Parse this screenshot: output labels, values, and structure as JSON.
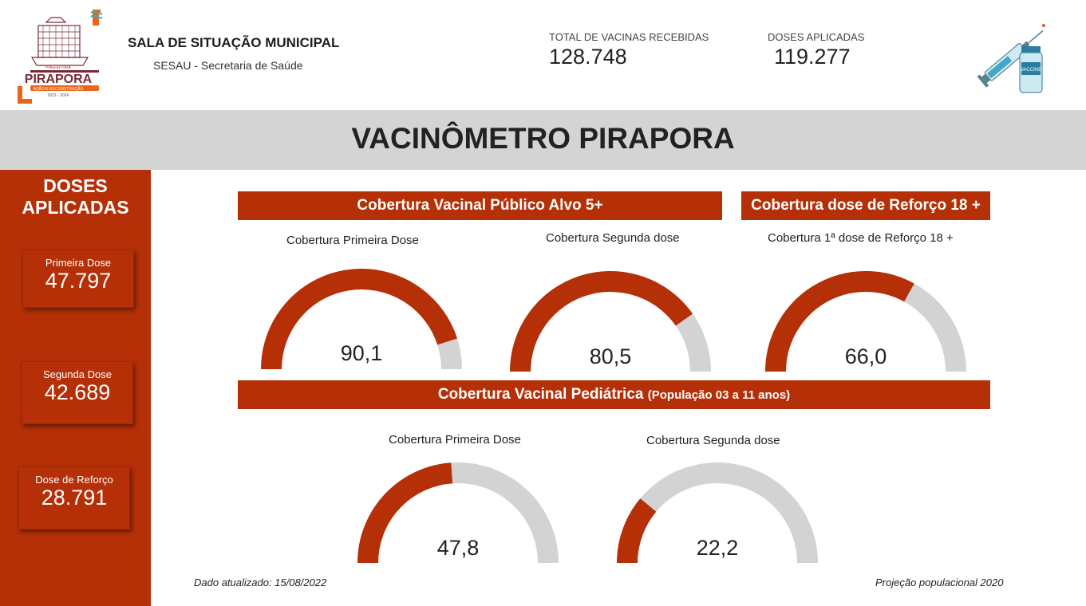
{
  "header": {
    "logo_text": "PIRAPORA",
    "title": "SALA DE SITUAÇÃO MUNICIPAL",
    "subtitle": "SESAU - Secretaria de Saúde",
    "kpis": [
      {
        "label": "TOTAL DE VACINAS RECEBIDAS",
        "value": "128.748"
      },
      {
        "label": "DOSES APLICADAS",
        "value": "119.277"
      }
    ]
  },
  "banner": {
    "title": "VACINÔMETRO PIRAPORA"
  },
  "sidebar": {
    "title": "DOSES APLICADAS",
    "cards": [
      {
        "label": "Primeira Dose",
        "value": "47.797"
      },
      {
        "label": "Segunda Dose",
        "value": "42.689"
      },
      {
        "label": "Dose de Reforço",
        "value": "28.791"
      }
    ]
  },
  "sections": {
    "adult": "Cobertura Vacinal Público Alvo 5+",
    "booster": "Cobertura dose de Reforço 18 +",
    "pediatric": "Cobertura Vacinal Pediátrica",
    "pediatric_note": "(População 03 a 11 anos)"
  },
  "colors": {
    "accent": "#b52f07",
    "track": "#d3d3d3",
    "banner": "#d4d4d4"
  },
  "gauges": [
    {
      "title": "Cobertura Primeira Dose",
      "value": 90.1,
      "display": "90,1"
    },
    {
      "title": "Cobertura Segunda dose",
      "value": 80.5,
      "display": "80,5"
    },
    {
      "title": "Cobertura 1ª dose de Reforço 18 +",
      "value": 66.0,
      "display": "66,0"
    },
    {
      "title": "Cobertura Primeira Dose",
      "value": 47.8,
      "display": "47,8"
    },
    {
      "title": "Cobertura Segunda dose",
      "value": 22.2,
      "display": "22,2"
    }
  ],
  "footer": {
    "updated": "Dado atualizado: 15/08/2022",
    "projection": "Projeção populacional 2020"
  }
}
